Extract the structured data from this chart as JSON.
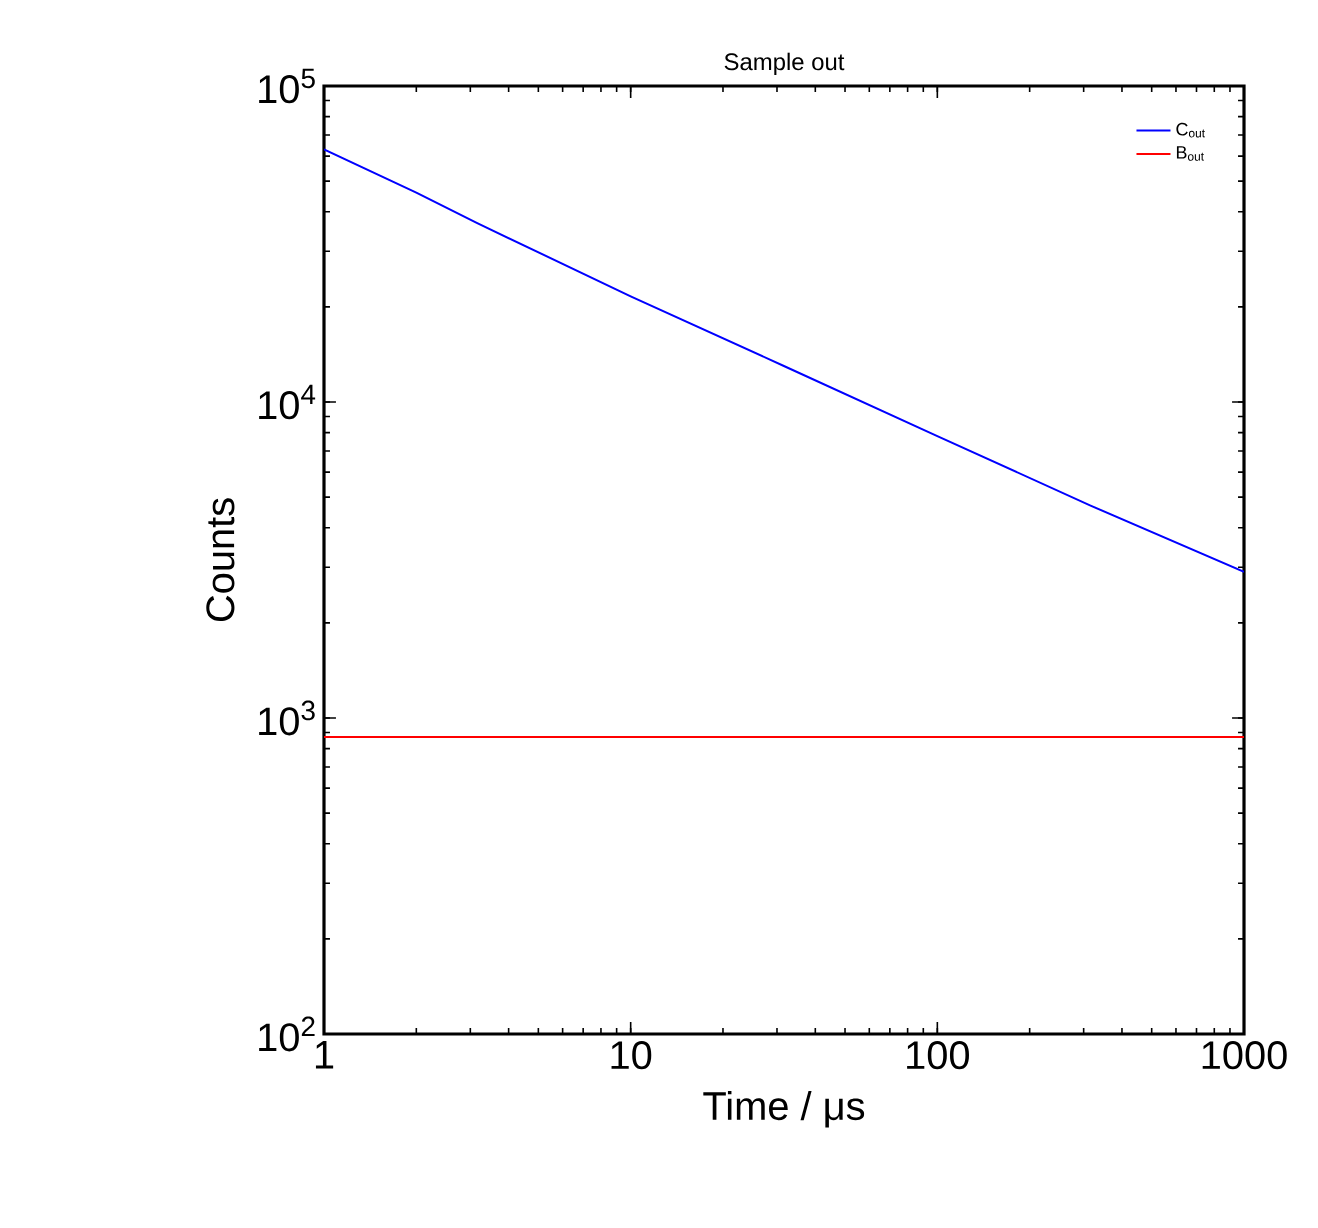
{
  "chart_data": {
    "type": "line",
    "title": "Sample out",
    "xlabel": "Time / μs",
    "ylabel": "Counts",
    "log": "xy",
    "x": [
      1,
      2,
      3.16,
      10,
      31.6,
      100,
      316,
      1000
    ],
    "series": [
      {
        "name": "C$_{out}$",
        "color": "#0000ff",
        "values": [
          63000,
          46000,
          36800,
          21600,
          13000,
          7800,
          4700,
          2900
        ]
      },
      {
        "name": "B$_{out}$",
        "color": "#ff0000",
        "values": [
          870,
          870,
          870,
          870,
          870,
          870,
          870,
          870
        ]
      }
    ],
    "xlim": [
      1,
      1000
    ],
    "ylim": [
      100,
      100000
    ],
    "xticks": [
      1,
      10,
      100,
      1000
    ],
    "yticks": [
      {
        "value": 100,
        "label": "10$^{2}$"
      },
      {
        "value": 1000,
        "label": "10$^{3}$"
      },
      {
        "value": 10000,
        "label": "10$^{4}$"
      },
      {
        "value": 100000,
        "label": "10$^{5}$"
      }
    ],
    "legend": "top right",
    "grid": false,
    "marker": "none",
    "line_style": "solid"
  }
}
